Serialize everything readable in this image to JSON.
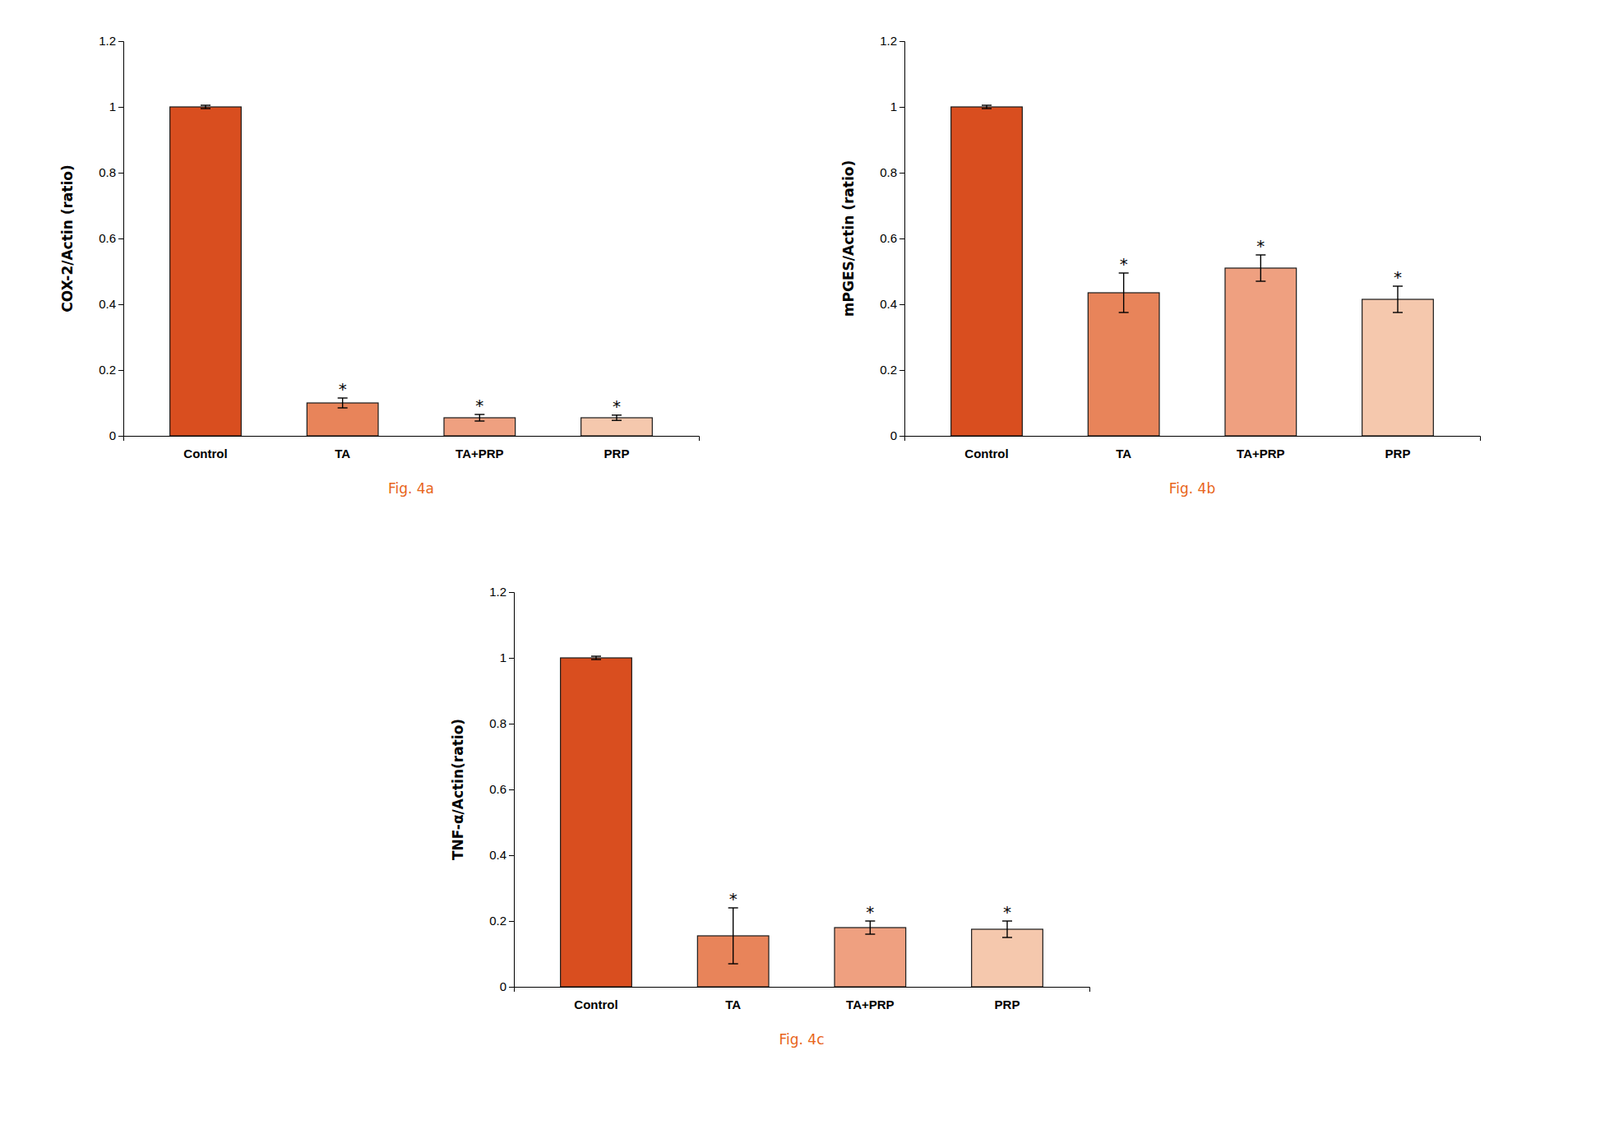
{
  "chart_data": [
    {
      "type": "bar",
      "title": "Fig. 4a",
      "ylabel": "COX-2/Actin (ratio)",
      "categories": [
        "Control",
        "TA",
        "TA+PRP",
        "PRP"
      ],
      "values": [
        1.0,
        0.1,
        0.055,
        0.055
      ],
      "errors": [
        0.005,
        0.015,
        0.01,
        0.008
      ],
      "significance": [
        null,
        "*",
        "*",
        "*"
      ],
      "colors": [
        "#D94E1F",
        "#E8845A",
        "#EFA080",
        "#F5C8AD"
      ],
      "ylim": [
        0,
        1.2
      ],
      "yticks": [
        0,
        0.2,
        0.4,
        0.6,
        0.8,
        1.0,
        1.2
      ],
      "grid": false
    },
    {
      "type": "bar",
      "title": "Fig. 4b",
      "ylabel": "mPGES/Actin (ratio)",
      "categories": [
        "Control",
        "TA",
        "TA+PRP",
        "PRP"
      ],
      "values": [
        1.0,
        0.435,
        0.51,
        0.415
      ],
      "errors": [
        0.005,
        0.06,
        0.04,
        0.04
      ],
      "significance": [
        null,
        "*",
        "*",
        "*"
      ],
      "colors": [
        "#D94E1F",
        "#E8845A",
        "#EFA080",
        "#F5C8AD"
      ],
      "ylim": [
        0,
        1.2
      ],
      "yticks": [
        0,
        0.2,
        0.4,
        0.6,
        0.8,
        1.0,
        1.2
      ],
      "grid": false
    },
    {
      "type": "bar",
      "title": "Fig. 4c",
      "ylabel": "TNF-α/Actin(ratio)",
      "categories": [
        "Control",
        "TA",
        "TA+PRP",
        "PRP"
      ],
      "values": [
        1.0,
        0.155,
        0.18,
        0.175
      ],
      "errors": [
        0.005,
        0.085,
        0.02,
        0.025
      ],
      "significance": [
        null,
        "*",
        "*",
        "*"
      ],
      "colors": [
        "#D94E1F",
        "#E8845A",
        "#EFA080",
        "#F5C8AD"
      ],
      "ylim": [
        0,
        1.2
      ],
      "yticks": [
        0,
        0.2,
        0.4,
        0.6,
        0.8,
        1.0,
        1.2
      ],
      "grid": false
    }
  ]
}
